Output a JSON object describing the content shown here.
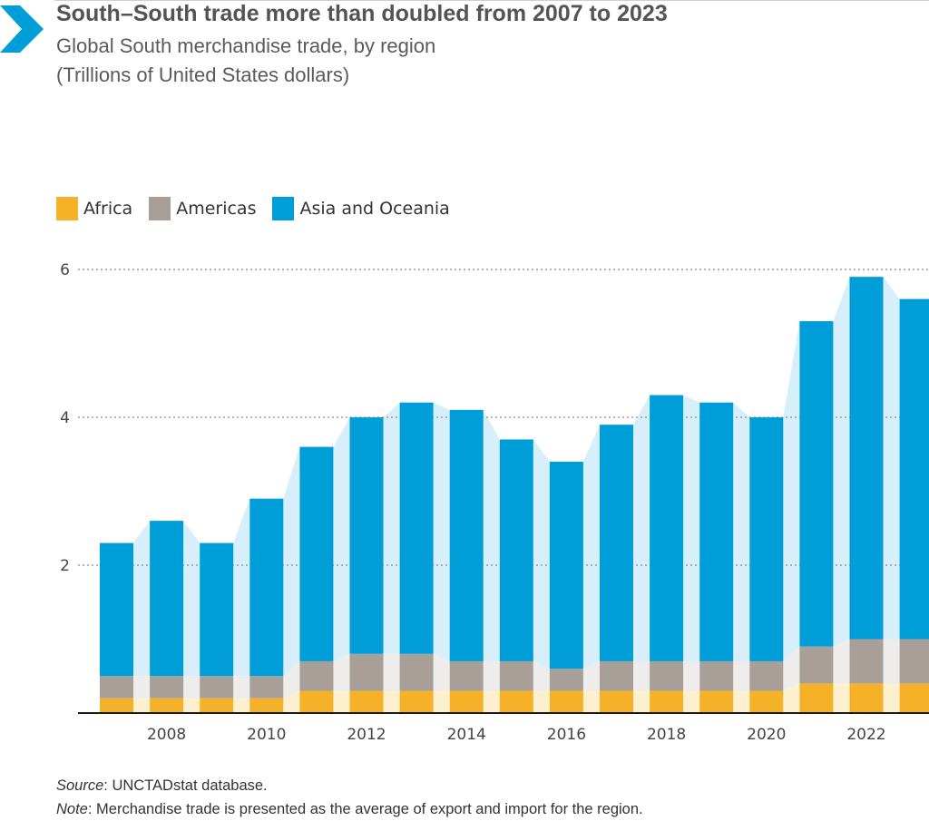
{
  "header": {
    "title": "South–South trade more than doubled from 2007 to 2023",
    "subtitle_line1": "Global South merchandise trade, by region",
    "subtitle_line2": "(Trillions of United States dollars)"
  },
  "colors": {
    "africa": "#f5b229",
    "americas": "#a89f98",
    "asia": "#009ed9",
    "africa_light": "#fdf0cf",
    "americas_light": "#efedeb",
    "asia_light": "#d7effa",
    "accent": "#009ed9",
    "grid": "#8a8a8a",
    "axis": "#1a1a1a"
  },
  "chart_data": {
    "type": "bar",
    "stacked": true,
    "x": [
      2007,
      2008,
      2009,
      2010,
      2011,
      2012,
      2013,
      2014,
      2015,
      2016,
      2017,
      2018,
      2019,
      2020,
      2021,
      2022,
      2023
    ],
    "series": [
      {
        "name": "Africa",
        "values": [
          0.2,
          0.2,
          0.2,
          0.2,
          0.3,
          0.3,
          0.3,
          0.3,
          0.3,
          0.3,
          0.3,
          0.3,
          0.3,
          0.3,
          0.4,
          0.4,
          0.4
        ]
      },
      {
        "name": "Americas",
        "values": [
          0.3,
          0.3,
          0.3,
          0.3,
          0.4,
          0.5,
          0.5,
          0.4,
          0.4,
          0.3,
          0.4,
          0.4,
          0.4,
          0.4,
          0.5,
          0.6,
          0.6
        ]
      },
      {
        "name": "Asia and Oceania",
        "values": [
          1.8,
          2.1,
          1.8,
          2.4,
          2.9,
          3.2,
          3.4,
          3.4,
          3.0,
          2.8,
          3.2,
          3.6,
          3.5,
          3.3,
          4.4,
          4.9,
          4.6
        ]
      }
    ],
    "ylim": [
      0,
      6
    ],
    "yticks": [
      "2",
      "4",
      "6"
    ],
    "xtick_labels": [
      "2008",
      "2010",
      "2012",
      "2014",
      "2016",
      "2018",
      "2020",
      "2022"
    ],
    "xlabel": "",
    "ylabel": "",
    "grid": true,
    "legend": "top-left"
  },
  "footer": {
    "source_label": "Source",
    "source_text": ": UNCTADstat database.",
    "note_label": "Note",
    "note_text": ": Merchandise trade is presented as the average of export and import for the region."
  }
}
